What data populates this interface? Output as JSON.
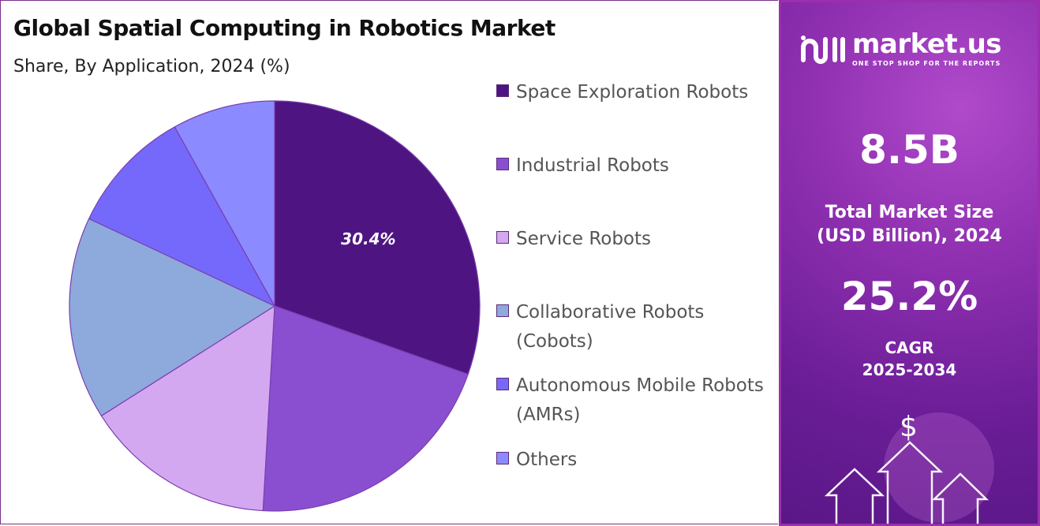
{
  "header": {
    "title": "Global Spatial Computing in Robotics Market",
    "subtitle": "Share, By Application, 2024 (%)"
  },
  "chart_data": {
    "type": "pie",
    "title": "Global Spatial Computing in Robotics Market",
    "subtitle": "Share, By Application, 2024 (%)",
    "categories": [
      "Space Exploration Robots",
      "Industrial Robots",
      "Service Robots",
      "Collaborative Robots (Cobots)",
      "Autonomous Mobile Robots (AMRs)",
      "Others"
    ],
    "values": [
      30.4,
      20.5,
      15.1,
      16.0,
      9.9,
      8.1
    ],
    "colors": [
      "#4e1582",
      "#8a4fd0",
      "#d4a8f0",
      "#8ea9dc",
      "#7569fb",
      "#8b8bff"
    ],
    "data_labels": [
      "30.4%",
      "",
      "",
      "",
      "",
      ""
    ],
    "legend_placement": "right"
  },
  "legend": {
    "items": [
      {
        "label": "Space Exploration Robots",
        "color": "#4e1582"
      },
      {
        "label": "Industrial Robots",
        "color": "#8a4fd0"
      },
      {
        "label": "Service Robots",
        "color": "#d4a8f0"
      },
      {
        "label": "Collaborative Robots (Cobots)",
        "color": "#8ea9dc"
      },
      {
        "label": "Autonomous Mobile Robots (AMRs)",
        "color": "#7569fb"
      },
      {
        "label": "Others",
        "color": "#8b8bff"
      }
    ]
  },
  "panel": {
    "brand_name": "market.us",
    "brand_tagline": "ONE STOP SHOP FOR THE REPORTS",
    "market_size_value": "8.5B",
    "market_size_label_line1": "Total Market Size",
    "market_size_label_line2": "(USD Billion), 2024",
    "cagr_value": "25.2%",
    "cagr_label_line1": "CAGR",
    "cagr_label_line2": "2025-2034",
    "dollar_symbol": "$"
  }
}
